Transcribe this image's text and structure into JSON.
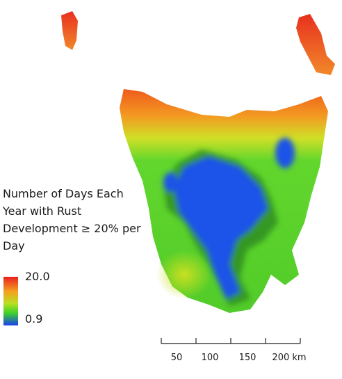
{
  "legend": {
    "title_lines": [
      "Number of Days Each",
      "Year with Rust",
      "Development ≥ 20% per",
      "Day"
    ],
    "max_label": "20.0",
    "min_label": "0.9"
  },
  "scale_bar": {
    "labels": [
      "50",
      "100",
      "150",
      "200 km"
    ]
  }
}
